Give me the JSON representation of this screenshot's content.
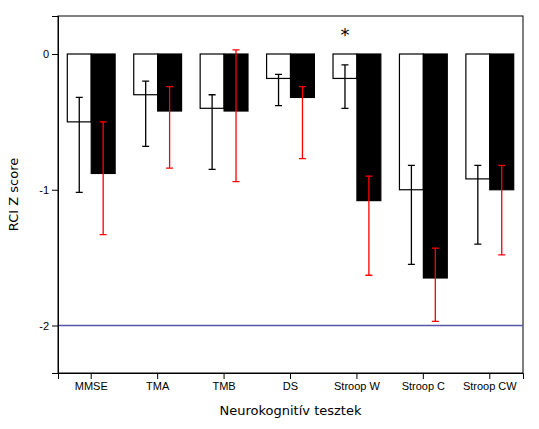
{
  "chart_data": {
    "type": "bar",
    "x_label": "Neurokognitív tesztek",
    "y_label": "RCI Z score",
    "categories": [
      "MMSE",
      "TMA",
      "TMB",
      "DS",
      "Stroop W",
      "Stroop C",
      "Stroop CW"
    ],
    "series": [
      {
        "color": "#ffffff",
        "values": [
          -0.5,
          -0.3,
          -0.4,
          -0.18,
          -0.18,
          -1.0,
          -0.92
        ],
        "err_neg": [
          0.52,
          0.38,
          0.45,
          0.2,
          0.22,
          0.55,
          0.48
        ],
        "err_pos": [
          0.18,
          0.1,
          0.1,
          0.03,
          0.1,
          0.18,
          0.1
        ]
      },
      {
        "color": "#000000",
        "values": [
          -0.88,
          -0.42,
          -0.42,
          -0.32,
          -1.08,
          -1.65,
          -1.0
        ],
        "err_neg": [
          0.45,
          0.42,
          0.52,
          0.45,
          0.55,
          0.32,
          0.48
        ],
        "err_pos": [
          0.38,
          0.18,
          0.45,
          0.08,
          0.18,
          0.22,
          0.18
        ]
      }
    ],
    "reference_lines": [
      {
        "value": -2.0,
        "color": "#5555aa"
      }
    ],
    "annotations": [
      {
        "text": "*",
        "x": "Stroop W",
        "series": 0,
        "y": 0.1
      }
    ],
    "ylim": [
      -2.35,
      0.28
    ],
    "yticks": [
      0,
      -1,
      -2
    ],
    "grid": false
  }
}
